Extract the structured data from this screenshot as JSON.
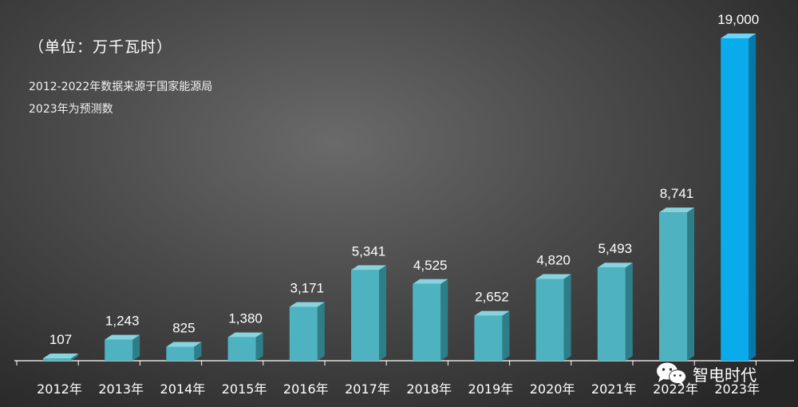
{
  "header": {
    "unit_label": "（单位：万千瓦时）",
    "source_note": "2012-2022年数据来源于国家能源局",
    "forecast_note": "2023年为预测数"
  },
  "watermark": {
    "text": "智电时代",
    "icon": "wechat-icon"
  },
  "colors": {
    "bar_front": "#4FB2C0",
    "bar_top": "#88D4DE",
    "bar_side": "#2E7E8A",
    "highlight_front": "#0AABEB",
    "highlight_top": "#6FD3F7",
    "highlight_side": "#0678A8",
    "axis": "#ffffff"
  },
  "chart_data": {
    "type": "bar",
    "style": "3d",
    "categories": [
      "2012年",
      "2013年",
      "2014年",
      "2015年",
      "2016年",
      "2017年",
      "2018年",
      "2019年",
      "2020年",
      "2021年",
      "2022年",
      "2023年"
    ],
    "values": [
      107,
      1243,
      825,
      1380,
      3171,
      5341,
      4525,
      2652,
      4820,
      5493,
      8741,
      19000
    ],
    "value_labels": [
      "107",
      "1,243",
      "825",
      "1,380",
      "3,171",
      "5,341",
      "4,525",
      "2,652",
      "4,820",
      "5,493",
      "8,741",
      "19,000"
    ],
    "highlight_index": 11,
    "ylim": [
      0,
      19000
    ]
  }
}
